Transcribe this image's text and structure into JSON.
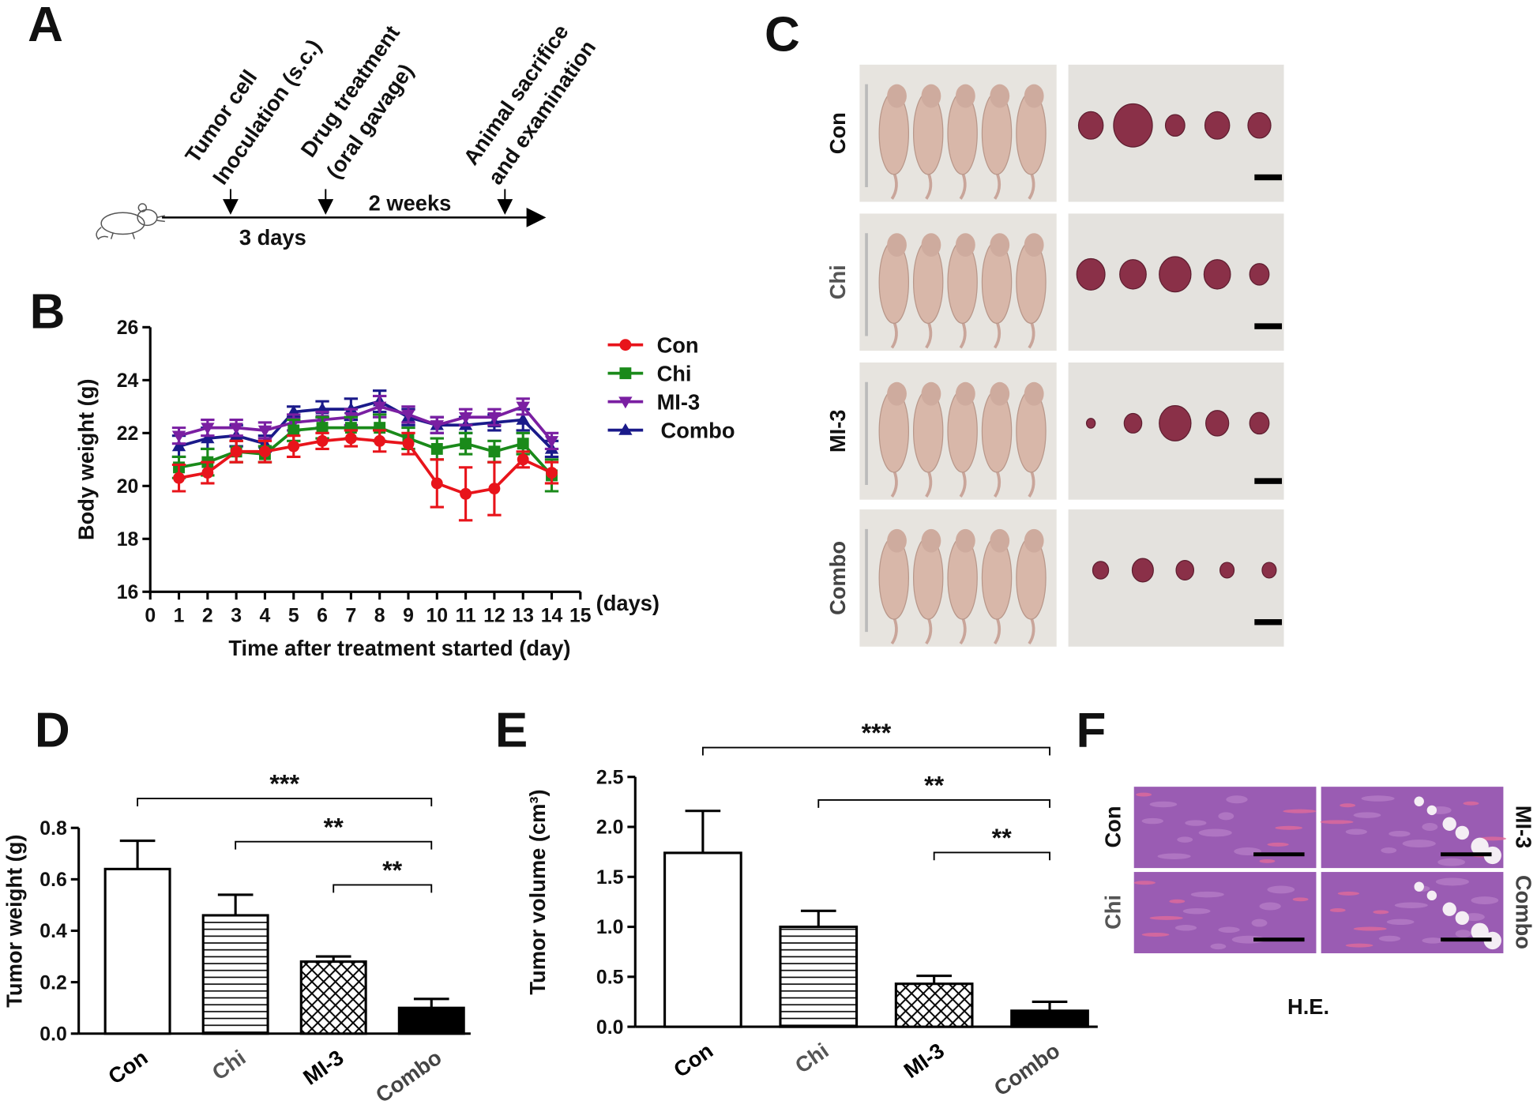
{
  "panels": {
    "A": {
      "letter": "A",
      "events": [
        "Tumor cell",
        "Inoculation (s.c.)",
        "Drug treatment",
        "(oral gavage)",
        "Animal sacrifice",
        "and examination"
      ],
      "intervals": [
        "3 days",
        "2 weeks"
      ]
    },
    "C": {
      "letter": "C",
      "rows": [
        "Con",
        "Chi",
        "MI-3",
        "Combo"
      ]
    },
    "F": {
      "letter": "F",
      "left_labels": [
        "Con",
        "Chi"
      ],
      "right_labels": [
        "MI-3",
        "Combo"
      ],
      "stain": "H.E."
    }
  },
  "chart_data": [
    {
      "type": "line",
      "panel_label": "B",
      "x_label": "Time after treatment started (day)",
      "y_label": "Body weight (g)",
      "x_unit_label": "(days)",
      "x": [
        1,
        2,
        3,
        4,
        5,
        6,
        7,
        8,
        9,
        10,
        11,
        12,
        13,
        14
      ],
      "xlim": [
        0,
        15
      ],
      "xticks": [
        0,
        1,
        2,
        3,
        4,
        5,
        6,
        7,
        8,
        9,
        10,
        11,
        12,
        13,
        14,
        15
      ],
      "ylim": [
        16,
        26
      ],
      "yticks": [
        16,
        18,
        20,
        22,
        24,
        26
      ],
      "legend": "right",
      "series": [
        {
          "name": "Con",
          "color": "#e8141b",
          "marker": "circle",
          "values": [
            20.3,
            20.5,
            21.3,
            21.3,
            21.5,
            21.7,
            21.8,
            21.7,
            21.6,
            20.1,
            19.7,
            19.9,
            21.0,
            20.5
          ],
          "errors": [
            0.5,
            0.4,
            0.4,
            0.4,
            0.4,
            0.3,
            0.3,
            0.4,
            0.4,
            0.9,
            1.0,
            1.0,
            0.3,
            0.4
          ]
        },
        {
          "name": "Chi",
          "color": "#1a8a1a",
          "marker": "square",
          "values": [
            20.7,
            20.9,
            21.3,
            21.2,
            22.1,
            22.2,
            22.2,
            22.2,
            21.8,
            21.4,
            21.6,
            21.3,
            21.6,
            20.4
          ],
          "errors": [
            0.4,
            0.5,
            0.4,
            0.3,
            0.4,
            0.4,
            0.4,
            0.5,
            0.4,
            0.4,
            0.4,
            0.4,
            0.4,
            0.6
          ]
        },
        {
          "name": "MI-3",
          "color": "#7a1fa2",
          "marker": "triangle-down",
          "values": [
            21.9,
            22.2,
            22.2,
            22.1,
            22.4,
            22.5,
            22.6,
            23.0,
            22.7,
            22.3,
            22.6,
            22.6,
            23.0,
            21.7
          ],
          "errors": [
            0.3,
            0.3,
            0.3,
            0.3,
            0.3,
            0.3,
            0.3,
            0.4,
            0.3,
            0.3,
            0.3,
            0.3,
            0.3,
            0.3
          ]
        },
        {
          "name": "Combo",
          "color": "#1a1a8a",
          "marker": "triangle-up",
          "values": [
            21.5,
            21.8,
            21.9,
            21.6,
            22.8,
            22.9,
            22.9,
            23.2,
            22.6,
            22.3,
            22.3,
            22.4,
            22.5,
            21.4
          ],
          "errors": [
            0.4,
            0.4,
            0.4,
            0.3,
            0.2,
            0.3,
            0.4,
            0.4,
            0.3,
            0.3,
            0.3,
            0.3,
            0.4,
            0.3
          ]
        }
      ]
    },
    {
      "type": "bar",
      "panel_label": "D",
      "y_label": "Tumor weight (g)",
      "categories": [
        "Con",
        "Chi",
        "MI-3",
        "Combo"
      ],
      "category_colors": [
        "#000000",
        "#555555",
        "#000000",
        "#444444"
      ],
      "values": [
        0.64,
        0.46,
        0.28,
        0.1
      ],
      "errors": [
        0.11,
        0.08,
        0.02,
        0.035
      ],
      "fills": [
        "white",
        "horizontal-lines",
        "cross-hatch",
        "black"
      ],
      "ylim": [
        0,
        0.8
      ],
      "yticks": [
        {
          "value": 0,
          "label": "0.0"
        },
        0.2,
        0.4,
        0.6,
        0.8
      ],
      "annotations": [
        "***",
        "**",
        "**"
      ]
    },
    {
      "type": "bar",
      "panel_label": "E",
      "y_label": "Tumor volume (cm³)",
      "categories": [
        "Con",
        "Chi",
        "MI-3",
        "Combo"
      ],
      "category_colors": [
        "#000000",
        "#555555",
        "#000000",
        "#444444"
      ],
      "values": [
        1.74,
        1.0,
        0.43,
        0.16
      ],
      "errors": [
        0.42,
        0.16,
        0.08,
        0.09
      ],
      "fills": [
        "white",
        "horizontal-lines",
        "cross-hatch",
        "black"
      ],
      "ylim": [
        0,
        2.5
      ],
      "yticks": [
        {
          "value": 0,
          "label": "0.0"
        },
        0.5,
        {
          "value": 1,
          "label": "1.0"
        },
        1.5,
        {
          "value": 2,
          "label": "2.0"
        },
        2.5
      ],
      "annotations": [
        "***",
        "**",
        "**"
      ]
    }
  ]
}
